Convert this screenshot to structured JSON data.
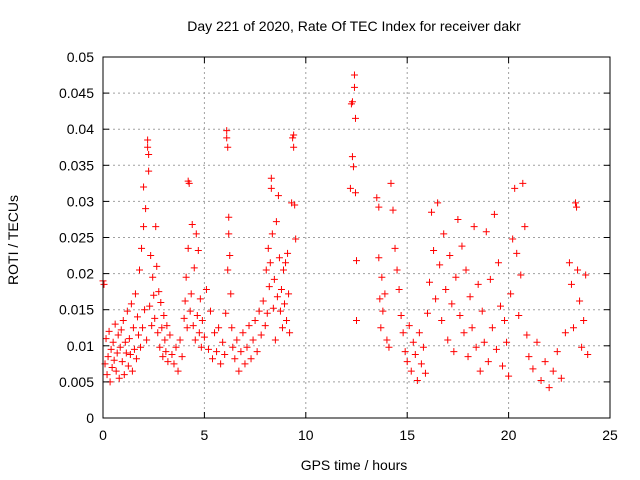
{
  "chart_data": {
    "type": "scatter",
    "title": "Day 221 of 2020, Rate Of TEC Index for receiver dakr",
    "xlabel": "GPS time / hours",
    "ylabel": "ROTI / TECUs",
    "xlim": [
      0,
      25
    ],
    "ylim": [
      0,
      0.05
    ],
    "x_ticks": [
      "0",
      "5",
      "10",
      "15",
      "20",
      "25"
    ],
    "y_ticks": [
      "0",
      "0.005",
      "0.01",
      "0.015",
      "0.02",
      "0.025",
      "0.03",
      "0.035",
      "0.04",
      "0.045",
      "0.05"
    ],
    "grid": true,
    "marker": "+",
    "colors": {
      "series": "#ff0000",
      "grid": "#a0a0a0",
      "axis": "#000000"
    },
    "series": [
      {
        "name": "ROTI",
        "points": [
          [
            0.0,
            0.019
          ],
          [
            0.05,
            0.0185
          ],
          [
            0.1,
            0.0075
          ],
          [
            0.15,
            0.011
          ],
          [
            0.2,
            0.006
          ],
          [
            0.25,
            0.0085
          ],
          [
            0.3,
            0.012
          ],
          [
            0.35,
            0.005
          ],
          [
            0.4,
            0.0095
          ],
          [
            0.45,
            0.007
          ],
          [
            0.5,
            0.0105
          ],
          [
            0.55,
            0.008
          ],
          [
            0.6,
            0.013
          ],
          [
            0.65,
            0.0065
          ],
          [
            0.7,
            0.009
          ],
          [
            0.75,
            0.0115
          ],
          [
            0.8,
            0.0055
          ],
          [
            0.85,
            0.0098
          ],
          [
            0.9,
            0.0122
          ],
          [
            0.95,
            0.0078
          ],
          [
            1.0,
            0.0135
          ],
          [
            1.05,
            0.006
          ],
          [
            1.1,
            0.0105
          ],
          [
            1.15,
            0.009
          ],
          [
            1.2,
            0.0148
          ],
          [
            1.25,
            0.0072
          ],
          [
            1.3,
            0.011
          ],
          [
            1.35,
            0.0088
          ],
          [
            1.4,
            0.0158
          ],
          [
            1.45,
            0.0065
          ],
          [
            1.5,
            0.0125
          ],
          [
            1.55,
            0.0095
          ],
          [
            1.6,
            0.0172
          ],
          [
            1.65,
            0.0082
          ],
          [
            1.7,
            0.014
          ],
          [
            1.75,
            0.0115
          ],
          [
            1.8,
            0.0205
          ],
          [
            1.85,
            0.0098
          ],
          [
            1.9,
            0.0235
          ],
          [
            1.95,
            0.0125
          ],
          [
            2.0,
            0.0265
          ],
          [
            2.0,
            0.032
          ],
          [
            2.05,
            0.015
          ],
          [
            2.1,
            0.029
          ],
          [
            2.15,
            0.0108
          ],
          [
            2.2,
            0.0385
          ],
          [
            2.2,
            0.0375
          ],
          [
            2.25,
            0.0365
          ],
          [
            2.25,
            0.0342
          ],
          [
            2.3,
            0.0155
          ],
          [
            2.35,
            0.0225
          ],
          [
            2.4,
            0.0128
          ],
          [
            2.45,
            0.0195
          ],
          [
            2.5,
            0.017
          ],
          [
            2.55,
            0.0138
          ],
          [
            2.6,
            0.0265
          ],
          [
            2.65,
            0.021
          ],
          [
            2.7,
            0.0118
          ],
          [
            2.75,
            0.0175
          ],
          [
            2.8,
            0.0098
          ],
          [
            2.85,
            0.016
          ],
          [
            2.9,
            0.0125
          ],
          [
            2.95,
            0.0085
          ],
          [
            3.0,
            0.0142
          ],
          [
            3.05,
            0.0108
          ],
          [
            3.1,
            0.0092
          ],
          [
            3.15,
            0.0128
          ],
          [
            3.2,
            0.0078
          ],
          [
            3.3,
            0.0115
          ],
          [
            3.4,
            0.0088
          ],
          [
            3.5,
            0.0075
          ],
          [
            3.6,
            0.0098
          ],
          [
            3.7,
            0.0065
          ],
          [
            3.8,
            0.0108
          ],
          [
            3.9,
            0.0085
          ],
          [
            4.0,
            0.0138
          ],
          [
            4.05,
            0.0162
          ],
          [
            4.1,
            0.0195
          ],
          [
            4.15,
            0.0125
          ],
          [
            4.2,
            0.0235
          ],
          [
            4.2,
            0.0328
          ],
          [
            4.25,
            0.0325
          ],
          [
            4.3,
            0.0148
          ],
          [
            4.35,
            0.0172
          ],
          [
            4.4,
            0.0268
          ],
          [
            4.45,
            0.0128
          ],
          [
            4.5,
            0.0208
          ],
          [
            4.55,
            0.0108
          ],
          [
            4.6,
            0.0255
          ],
          [
            4.65,
            0.0142
          ],
          [
            4.7,
            0.0232
          ],
          [
            4.75,
            0.0118
          ],
          [
            4.8,
            0.0165
          ],
          [
            4.85,
            0.0098
          ],
          [
            4.9,
            0.0135
          ],
          [
            5.0,
            0.0112
          ],
          [
            5.1,
            0.0178
          ],
          [
            5.2,
            0.0095
          ],
          [
            5.3,
            0.0148
          ],
          [
            5.4,
            0.0082
          ],
          [
            5.5,
            0.0118
          ],
          [
            5.6,
            0.0092
          ],
          [
            5.7,
            0.0125
          ],
          [
            5.8,
            0.0075
          ],
          [
            5.9,
            0.0105
          ],
          [
            6.0,
            0.0088
          ],
          [
            6.05,
            0.0145
          ],
          [
            6.1,
            0.0398
          ],
          [
            6.1,
            0.0388
          ],
          [
            6.15,
            0.0375
          ],
          [
            6.15,
            0.0205
          ],
          [
            6.2,
            0.0278
          ],
          [
            6.2,
            0.0255
          ],
          [
            6.25,
            0.0225
          ],
          [
            6.3,
            0.0172
          ],
          [
            6.35,
            0.0125
          ],
          [
            6.4,
            0.0098
          ],
          [
            6.5,
            0.0082
          ],
          [
            6.6,
            0.0108
          ],
          [
            6.7,
            0.0065
          ],
          [
            6.8,
            0.0092
          ],
          [
            6.9,
            0.0118
          ],
          [
            7.0,
            0.0075
          ],
          [
            7.1,
            0.0098
          ],
          [
            7.2,
            0.0128
          ],
          [
            7.3,
            0.0082
          ],
          [
            7.4,
            0.0108
          ],
          [
            7.5,
            0.0135
          ],
          [
            7.6,
            0.0092
          ],
          [
            7.7,
            0.0148
          ],
          [
            7.8,
            0.0115
          ],
          [
            7.9,
            0.0162
          ],
          [
            8.0,
            0.0128
          ],
          [
            8.05,
            0.0205
          ],
          [
            8.1,
            0.0145
          ],
          [
            8.15,
            0.0235
          ],
          [
            8.2,
            0.0182
          ],
          [
            8.25,
            0.0215
          ],
          [
            8.3,
            0.0332
          ],
          [
            8.3,
            0.0318
          ],
          [
            8.35,
            0.0255
          ],
          [
            8.4,
            0.0152
          ],
          [
            8.45,
            0.0192
          ],
          [
            8.5,
            0.0108
          ],
          [
            8.55,
            0.0272
          ],
          [
            8.6,
            0.0168
          ],
          [
            8.65,
            0.0308
          ],
          [
            8.7,
            0.0222
          ],
          [
            8.75,
            0.0148
          ],
          [
            8.8,
            0.0178
          ],
          [
            8.85,
            0.0125
          ],
          [
            8.9,
            0.0205
          ],
          [
            8.95,
            0.0158
          ],
          [
            9.0,
            0.0215
          ],
          [
            9.05,
            0.0135
          ],
          [
            9.1,
            0.0228
          ],
          [
            9.15,
            0.0172
          ],
          [
            9.2,
            0.0118
          ],
          [
            9.3,
            0.0298
          ],
          [
            9.35,
            0.0388
          ],
          [
            9.4,
            0.0392
          ],
          [
            9.4,
            0.0375
          ],
          [
            9.45,
            0.0295
          ],
          [
            9.5,
            0.0248
          ],
          [
            12.2,
            0.0318
          ],
          [
            12.25,
            0.0435
          ],
          [
            12.3,
            0.0438
          ],
          [
            12.3,
            0.0362
          ],
          [
            12.35,
            0.0348
          ],
          [
            12.4,
            0.0475
          ],
          [
            12.4,
            0.0458
          ],
          [
            12.45,
            0.0415
          ],
          [
            12.45,
            0.0312
          ],
          [
            12.5,
            0.0218
          ],
          [
            12.5,
            0.0135
          ],
          [
            13.5,
            0.0305
          ],
          [
            13.6,
            0.0292
          ],
          [
            13.6,
            0.0222
          ],
          [
            13.65,
            0.0165
          ],
          [
            13.7,
            0.0125
          ],
          [
            13.75,
            0.0195
          ],
          [
            13.8,
            0.0148
          ],
          [
            13.9,
            0.0172
          ],
          [
            14.0,
            0.0108
          ],
          [
            14.1,
            0.0098
          ],
          [
            14.2,
            0.0325
          ],
          [
            14.3,
            0.0288
          ],
          [
            14.4,
            0.0235
          ],
          [
            14.5,
            0.0205
          ],
          [
            14.6,
            0.0178
          ],
          [
            14.7,
            0.0142
          ],
          [
            14.8,
            0.0118
          ],
          [
            14.9,
            0.0092
          ],
          [
            15.0,
            0.0078
          ],
          [
            15.1,
            0.0128
          ],
          [
            15.2,
            0.0065
          ],
          [
            15.3,
            0.0105
          ],
          [
            15.4,
            0.0088
          ],
          [
            15.5,
            0.0052
          ],
          [
            15.6,
            0.0118
          ],
          [
            15.7,
            0.0075
          ],
          [
            15.8,
            0.0098
          ],
          [
            15.9,
            0.0062
          ],
          [
            16.0,
            0.0145
          ],
          [
            16.1,
            0.0188
          ],
          [
            16.2,
            0.0285
          ],
          [
            16.3,
            0.0232
          ],
          [
            16.4,
            0.0165
          ],
          [
            16.5,
            0.0298
          ],
          [
            16.6,
            0.0212
          ],
          [
            16.7,
            0.0135
          ],
          [
            16.8,
            0.0255
          ],
          [
            16.9,
            0.0178
          ],
          [
            17.0,
            0.0108
          ],
          [
            17.1,
            0.0225
          ],
          [
            17.2,
            0.0158
          ],
          [
            17.3,
            0.0092
          ],
          [
            17.4,
            0.0195
          ],
          [
            17.5,
            0.0275
          ],
          [
            17.6,
            0.0142
          ],
          [
            17.7,
            0.0238
          ],
          [
            17.8,
            0.0118
          ],
          [
            17.9,
            0.0205
          ],
          [
            18.0,
            0.0085
          ],
          [
            18.1,
            0.0168
          ],
          [
            18.2,
            0.0125
          ],
          [
            18.3,
            0.0265
          ],
          [
            18.4,
            0.0098
          ],
          [
            18.5,
            0.0185
          ],
          [
            18.6,
            0.0065
          ],
          [
            18.7,
            0.0148
          ],
          [
            18.8,
            0.0105
          ],
          [
            18.9,
            0.0258
          ],
          [
            19.0,
            0.0078
          ],
          [
            19.1,
            0.0192
          ],
          [
            19.2,
            0.0125
          ],
          [
            19.3,
            0.0282
          ],
          [
            19.4,
            0.0095
          ],
          [
            19.5,
            0.0215
          ],
          [
            19.6,
            0.0155
          ],
          [
            19.7,
            0.0072
          ],
          [
            19.8,
            0.0135
          ],
          [
            19.9,
            0.0105
          ],
          [
            20.0,
            0.0058
          ],
          [
            20.1,
            0.0172
          ],
          [
            20.2,
            0.0248
          ],
          [
            20.3,
            0.0318
          ],
          [
            20.4,
            0.0228
          ],
          [
            20.5,
            0.0142
          ],
          [
            20.6,
            0.0198
          ],
          [
            20.7,
            0.0325
          ],
          [
            20.8,
            0.0265
          ],
          [
            20.9,
            0.0115
          ],
          [
            21.0,
            0.0085
          ],
          [
            21.2,
            0.0068
          ],
          [
            21.4,
            0.0105
          ],
          [
            21.6,
            0.0052
          ],
          [
            21.8,
            0.0078
          ],
          [
            22.0,
            0.0042
          ],
          [
            22.2,
            0.0065
          ],
          [
            22.4,
            0.0092
          ],
          [
            22.6,
            0.0055
          ],
          [
            22.8,
            0.0118
          ],
          [
            23.0,
            0.0215
          ],
          [
            23.1,
            0.0185
          ],
          [
            23.2,
            0.0125
          ],
          [
            23.3,
            0.0298
          ],
          [
            23.35,
            0.0292
          ],
          [
            23.4,
            0.0205
          ],
          [
            23.5,
            0.0162
          ],
          [
            23.6,
            0.0098
          ],
          [
            23.7,
            0.0135
          ],
          [
            23.8,
            0.0198
          ],
          [
            23.9,
            0.0088
          ]
        ]
      }
    ]
  }
}
